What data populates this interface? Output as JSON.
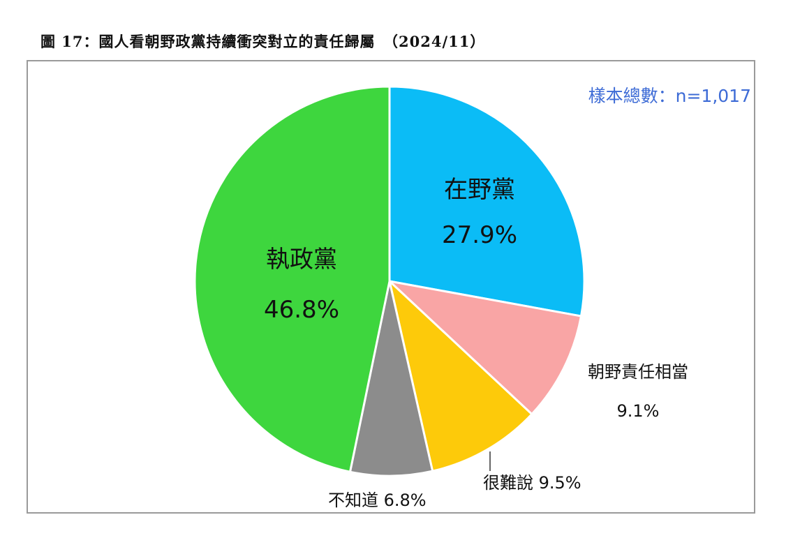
{
  "figure": {
    "title": "圖 17：國人看朝野政黨持續衝突對立的責任歸屬　（2024/11）",
    "sample_note": "樣本總數：n=1,017"
  },
  "chart_data": {
    "type": "pie",
    "title": "圖 17：國人看朝野政黨持續衝突對立的責任歸屬　（2024/11）",
    "slices": [
      {
        "label": "在野黨",
        "value": 27.9,
        "value_text": "27.9%",
        "color": "#0bbcf6"
      },
      {
        "label": "朝野責任相當",
        "value": 9.1,
        "value_text": "9.1%",
        "color": "#f9a5a5"
      },
      {
        "label": "很難說",
        "value": 9.5,
        "value_text": "9.5%",
        "color": "#fdca0a"
      },
      {
        "label": "不知道",
        "value": 6.8,
        "value_text": "6.8%",
        "color": "#8c8c8c"
      },
      {
        "label": "執政黨",
        "value": 46.8,
        "value_text": "46.8%",
        "color": "#3ed63e"
      }
    ]
  }
}
